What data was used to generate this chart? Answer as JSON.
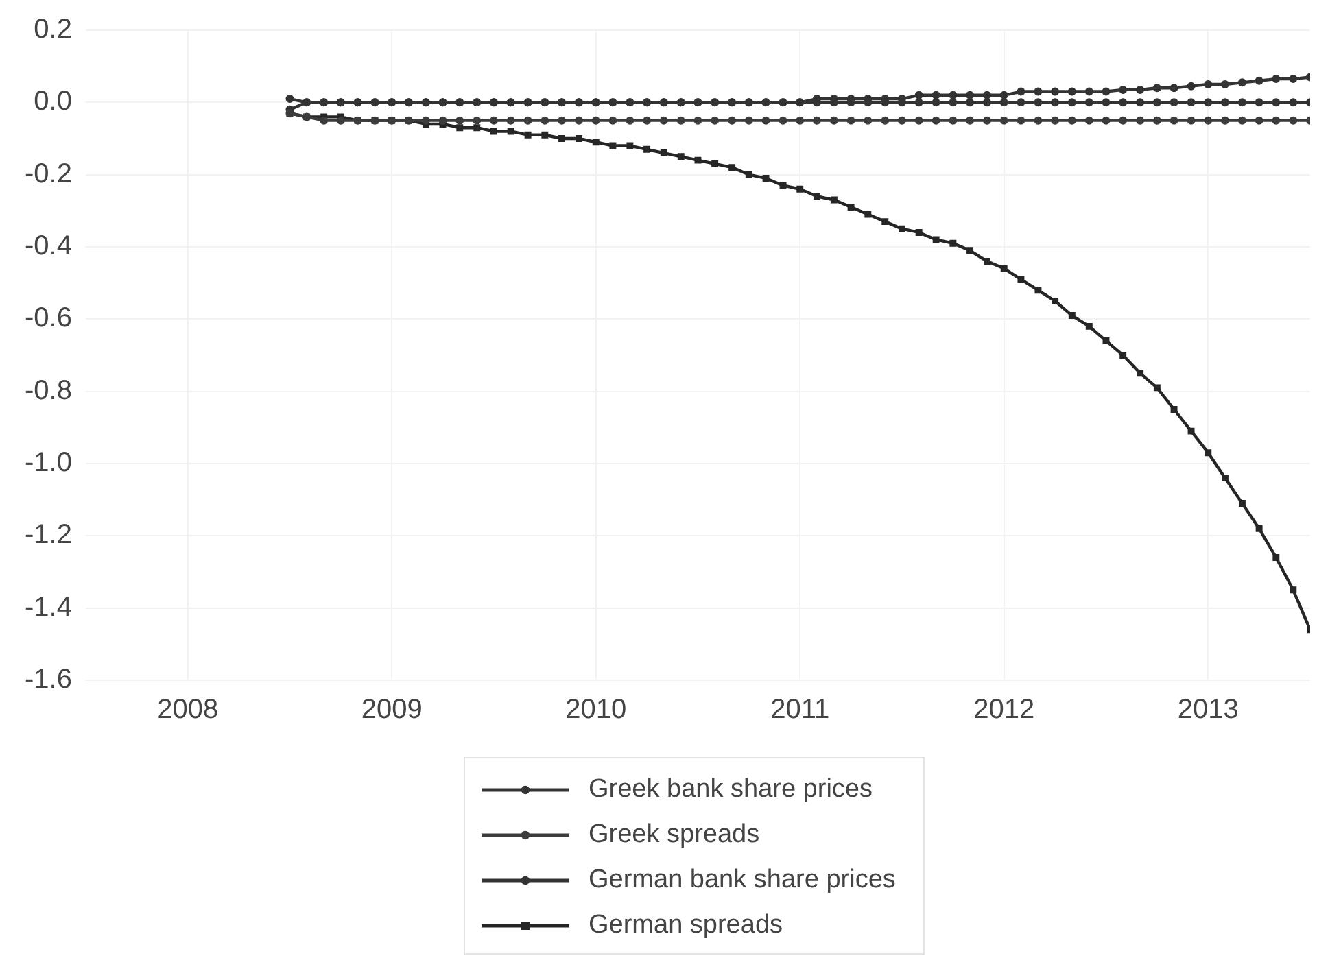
{
  "chart_data": {
    "type": "line",
    "x": [
      2008.5,
      2008.583,
      2008.667,
      2008.75,
      2008.833,
      2008.917,
      2009,
      2009.083,
      2009.167,
      2009.25,
      2009.333,
      2009.417,
      2009.5,
      2009.583,
      2009.667,
      2009.75,
      2009.833,
      2009.917,
      2010,
      2010.083,
      2010.167,
      2010.25,
      2010.333,
      2010.417,
      2010.5,
      2010.583,
      2010.667,
      2010.75,
      2010.833,
      2010.917,
      2011,
      2011.083,
      2011.167,
      2011.25,
      2011.333,
      2011.417,
      2011.5,
      2011.583,
      2011.667,
      2011.75,
      2011.833,
      2011.917,
      2012,
      2012.083,
      2012.167,
      2012.25,
      2012.333,
      2012.417,
      2012.5,
      2012.583,
      2012.667,
      2012.75,
      2012.833,
      2012.917,
      2013,
      2013.083,
      2013.167,
      2013.25,
      2013.333,
      2013.417,
      2013.5
    ],
    "series": [
      {
        "name": "Greek bank share prices",
        "color": "#333333",
        "marker": "circle",
        "values": [
          0.01,
          0,
          0,
          0,
          0,
          0,
          0,
          0,
          0,
          0,
          0,
          0,
          0,
          0,
          0,
          0,
          0,
          0,
          0,
          0,
          0,
          0,
          0,
          0,
          0,
          0,
          0,
          0,
          0,
          0,
          0,
          0,
          0,
          0,
          0,
          0,
          0,
          0,
          0,
          0,
          0,
          0,
          0,
          0,
          0,
          0,
          0,
          0,
          0,
          0,
          0,
          0,
          0,
          0,
          0,
          0,
          0,
          0,
          0,
          0,
          0
        ]
      },
      {
        "name": "Greek spreads",
        "color": "#3c3c3c",
        "marker": "circle",
        "values": [
          -0.03,
          -0.04,
          -0.05,
          -0.05,
          -0.05,
          -0.05,
          -0.05,
          -0.05,
          -0.05,
          -0.05,
          -0.05,
          -0.05,
          -0.05,
          -0.05,
          -0.05,
          -0.05,
          -0.05,
          -0.05,
          -0.05,
          -0.05,
          -0.05,
          -0.05,
          -0.05,
          -0.05,
          -0.05,
          -0.05,
          -0.05,
          -0.05,
          -0.05,
          -0.05,
          -0.05,
          -0.05,
          -0.05,
          -0.05,
          -0.05,
          -0.05,
          -0.05,
          -0.05,
          -0.05,
          -0.05,
          -0.05,
          -0.05,
          -0.05,
          -0.05,
          -0.05,
          -0.05,
          -0.05,
          -0.05,
          -0.05,
          -0.05,
          -0.05,
          -0.05,
          -0.05,
          -0.05,
          -0.05,
          -0.05,
          -0.05,
          -0.05,
          -0.05,
          -0.05,
          -0.05
        ]
      },
      {
        "name": "German bank share prices",
        "color": "#333333",
        "marker": "circle",
        "values": [
          -0.02,
          0,
          0,
          0,
          0,
          0,
          0,
          0,
          0,
          0,
          0,
          0,
          0,
          0,
          0,
          0,
          0,
          0,
          0,
          0,
          0,
          0,
          0,
          0,
          0,
          0,
          0,
          0,
          0,
          0,
          0,
          0.01,
          0.01,
          0.01,
          0.01,
          0.01,
          0.01,
          0.02,
          0.02,
          0.02,
          0.02,
          0.02,
          0.02,
          0.03,
          0.03,
          0.03,
          0.03,
          0.03,
          0.03,
          0.035,
          0.035,
          0.04,
          0.04,
          0.045,
          0.05,
          0.05,
          0.055,
          0.06,
          0.065,
          0.065,
          0.07
        ]
      },
      {
        "name": "German spreads",
        "color": "#262626",
        "marker": "square",
        "values": [
          -0.03,
          -0.04,
          -0.04,
          -0.04,
          -0.05,
          -0.05,
          -0.05,
          -0.05,
          -0.06,
          -0.06,
          -0.07,
          -0.07,
          -0.08,
          -0.08,
          -0.09,
          -0.09,
          -0.1,
          -0.1,
          -0.11,
          -0.12,
          -0.12,
          -0.13,
          -0.14,
          -0.15,
          -0.16,
          -0.17,
          -0.18,
          -0.2,
          -0.21,
          -0.23,
          -0.24,
          -0.26,
          -0.27,
          -0.29,
          -0.31,
          -0.33,
          -0.35,
          -0.36,
          -0.38,
          -0.39,
          -0.41,
          -0.44,
          -0.46,
          -0.49,
          -0.52,
          -0.55,
          -0.59,
          -0.62,
          -0.66,
          -0.7,
          -0.75,
          -0.79,
          -0.85,
          -0.91,
          -0.97,
          -1.04,
          -1.11,
          -1.18,
          -1.26,
          -1.35,
          -1.46
        ]
      }
    ],
    "xlim": [
      2007.5,
      2013.5
    ],
    "xticks": [
      2008,
      2009,
      2010,
      2011,
      2012,
      2013
    ],
    "ylim": [
      -1.6,
      0.2
    ],
    "yticks": [
      {
        "value": -1.6,
        "label": "-1.6"
      },
      {
        "value": -1.4,
        "label": "-1.4"
      },
      {
        "value": -1.2,
        "label": "-1.2"
      },
      {
        "value": -1.0,
        "label": "-1.0"
      },
      {
        "value": -0.8,
        "label": "-0.8"
      },
      {
        "value": -0.6,
        "label": "-0.6"
      },
      {
        "value": -0.4,
        "label": "-0.4"
      },
      {
        "value": -0.2,
        "label": "-0.2"
      },
      {
        "value": 0,
        "label": "0.0"
      },
      {
        "value": 0.2,
        "label": "0.2"
      }
    ],
    "grid": true,
    "legend": "bottom",
    "line_style": "solid"
  }
}
